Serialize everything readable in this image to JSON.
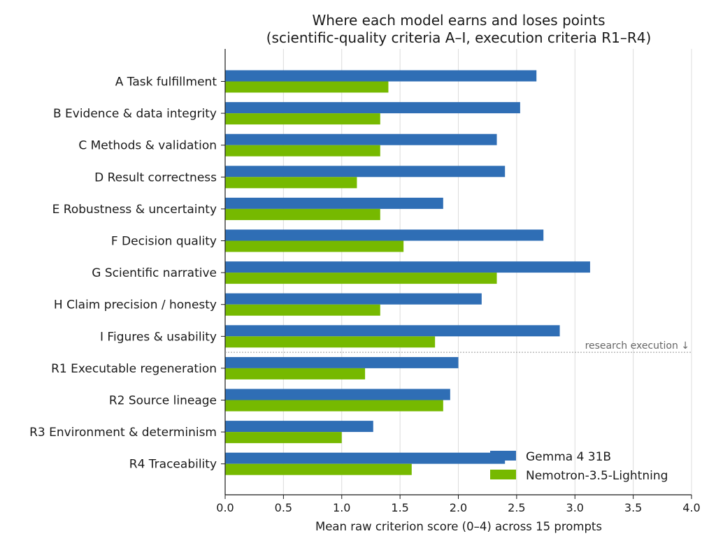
{
  "chart_data": {
    "type": "bar",
    "orientation": "horizontal",
    "title": "Where each model earns and loses points",
    "subtitle": "(scientific-quality criteria A–I, execution criteria R1–R4)",
    "xlabel": "Mean raw criterion score (0–4) across 15 prompts",
    "ylabel": "",
    "xlim": [
      0,
      4
    ],
    "xticks": [
      "0.0",
      "0.5",
      "1.0",
      "1.5",
      "2.0",
      "2.5",
      "3.0",
      "3.5",
      "4.0"
    ],
    "grid": "vertical",
    "legend_position": "bottom-right",
    "categories": [
      "A Task fulfillment",
      "B Evidence & data integrity",
      "C Methods & validation",
      "D Result correctness",
      "E Robustness & uncertainty",
      "F Decision quality",
      "G Scientific narrative",
      "H Claim precision / honesty",
      "I Figures & usability",
      "R1 Executable regeneration",
      "R2 Source lineage",
      "R3 Environment & determinism",
      "R4 Traceability"
    ],
    "series": [
      {
        "name": "Gemma 4 31B",
        "color": "#2f6eb5",
        "values": [
          2.67,
          2.53,
          2.33,
          2.4,
          1.87,
          2.73,
          3.13,
          2.2,
          2.87,
          2.0,
          1.93,
          1.27,
          2.4
        ]
      },
      {
        "name": "Nemotron-3.5-Lightning",
        "color": "#76b900",
        "values": [
          1.4,
          1.33,
          1.33,
          1.13,
          1.33,
          1.53,
          2.33,
          1.33,
          1.8,
          1.2,
          1.87,
          1.0,
          1.6
        ]
      }
    ],
    "annotation": {
      "text": "research execution ↓",
      "after_category_index": 8,
      "color": "#666666"
    }
  }
}
